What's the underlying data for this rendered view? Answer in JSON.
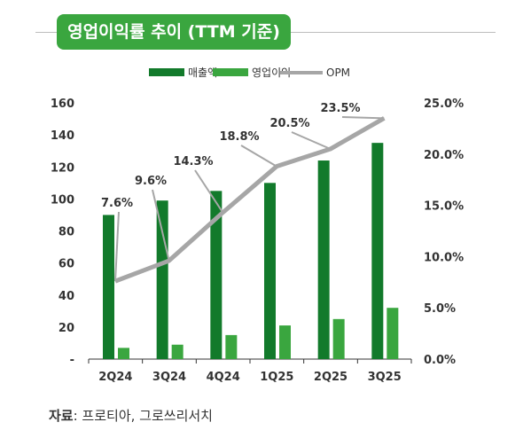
{
  "title": "영업이익률 추이 (TTM 기준)",
  "source": {
    "label": "자료",
    "text": ": 프로티아, 그로쓰리서치"
  },
  "colors": {
    "revenue": "#127a2b",
    "op_income": "#3aa63f",
    "opm": "#a6a6a6",
    "title_bg": "#3aa63f"
  },
  "chart_data": {
    "type": "bar",
    "categories": [
      "2Q24",
      "3Q24",
      "4Q24",
      "1Q25",
      "2Q25",
      "3Q25"
    ],
    "series": [
      {
        "name": "매출액",
        "axis": "left",
        "values": [
          90,
          99,
          105,
          110,
          124,
          135
        ]
      },
      {
        "name": "영업이익",
        "axis": "left",
        "values": [
          7,
          9,
          15,
          21,
          25,
          32
        ]
      },
      {
        "name": "OPM",
        "axis": "right",
        "type": "line",
        "values": [
          7.6,
          9.6,
          14.3,
          18.8,
          20.5,
          23.5
        ],
        "labels": [
          "7.6%",
          "9.6%",
          "14.3%",
          "18.8%",
          "20.5%",
          "23.5%"
        ]
      }
    ],
    "y_left": {
      "ylim": [
        0,
        160
      ],
      "ticks": [
        "-",
        "20",
        "40",
        "60",
        "80",
        "100",
        "120",
        "140",
        "160"
      ]
    },
    "y_right": {
      "ylim": [
        0,
        25
      ],
      "ticks": [
        "0.0%",
        "5.0%",
        "10.0%",
        "15.0%",
        "20.0%",
        "25.0%"
      ]
    },
    "legend": {
      "placement": "top-center",
      "entries": [
        "매출액",
        "영업이익",
        "OPM"
      ]
    },
    "grid": false
  }
}
